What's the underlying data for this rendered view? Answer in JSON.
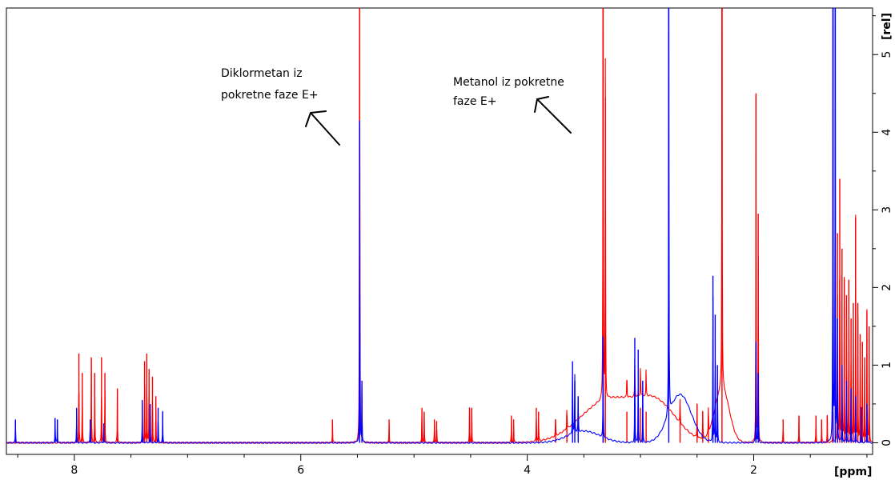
{
  "chart_data": {
    "type": "line",
    "title": "",
    "xlabel": "[ppm]",
    "ylabel": "[rel]",
    "x_reversed": true,
    "xlim": [
      8.6,
      0.95
    ],
    "ylim": [
      -0.15,
      5.6
    ],
    "xticks": [
      8,
      6,
      4,
      2
    ],
    "yticks": [
      0,
      1,
      2,
      3,
      4,
      5
    ],
    "grid": false,
    "legend": "none",
    "series": [
      {
        "color": "#ff0000",
        "baseline": 0.0,
        "broad": [
          {
            "x": 3.28,
            "h": 0.55,
            "w": 0.35
          },
          {
            "x": 2.85,
            "h": 0.45,
            "w": 0.25
          },
          {
            "x": 2.28,
            "h": 0.7,
            "w": 0.09
          }
        ],
        "peaks": [
          [
            7.96,
            1.15
          ],
          [
            7.93,
            0.9
          ],
          [
            7.85,
            1.1
          ],
          [
            7.82,
            0.9
          ],
          [
            7.76,
            1.1
          ],
          [
            7.73,
            0.9
          ],
          [
            7.62,
            0.7
          ],
          [
            7.38,
            1.05
          ],
          [
            7.36,
            1.15
          ],
          [
            7.34,
            0.95
          ],
          [
            7.31,
            0.85
          ],
          [
            7.28,
            0.6
          ],
          [
            5.72,
            0.3
          ],
          [
            5.48,
            9.0
          ],
          [
            5.22,
            0.3
          ],
          [
            4.93,
            0.45
          ],
          [
            4.91,
            0.4
          ],
          [
            4.82,
            0.3
          ],
          [
            4.8,
            0.28
          ],
          [
            4.51,
            0.45
          ],
          [
            4.49,
            0.45
          ],
          [
            4.14,
            0.35
          ],
          [
            4.12,
            0.3
          ],
          [
            3.92,
            0.45
          ],
          [
            3.9,
            0.4
          ],
          [
            3.75,
            0.3
          ],
          [
            3.65,
            0.35
          ],
          [
            3.33,
            9.0
          ],
          [
            3.31,
            4.45
          ],
          [
            3.12,
            0.4
          ],
          [
            3.05,
            0.5
          ],
          [
            3.0,
            0.45
          ],
          [
            2.95,
            0.4
          ],
          [
            2.65,
            0.35
          ],
          [
            2.5,
            0.5
          ],
          [
            2.45,
            0.4
          ],
          [
            2.4,
            0.35
          ],
          [
            2.28,
            9.0
          ],
          [
            1.98,
            4.5
          ],
          [
            1.96,
            2.95
          ],
          [
            1.74,
            0.3
          ],
          [
            1.6,
            0.35
          ],
          [
            1.45,
            0.35
          ],
          [
            1.4,
            0.3
          ],
          [
            1.35,
            0.35
          ],
          [
            1.3,
            0.4
          ],
          [
            1.26,
            2.7
          ],
          [
            1.24,
            3.4
          ],
          [
            1.22,
            2.5
          ],
          [
            1.2,
            2.1
          ],
          [
            1.18,
            1.9
          ],
          [
            1.16,
            2.1
          ],
          [
            1.14,
            1.6
          ],
          [
            1.12,
            1.8
          ],
          [
            1.1,
            2.9
          ],
          [
            1.08,
            1.8
          ],
          [
            1.06,
            1.4
          ],
          [
            1.04,
            1.3
          ],
          [
            1.02,
            1.1
          ],
          [
            1.0,
            1.7
          ],
          [
            0.98,
            1.5
          ]
        ]
      },
      {
        "color": "#0000ff",
        "baseline": 0.0,
        "broad": [
          {
            "x": 2.65,
            "h": 0.62,
            "w": 0.14
          },
          {
            "x": 3.5,
            "h": 0.15,
            "w": 0.2
          }
        ],
        "peaks": [
          [
            8.52,
            0.3
          ],
          [
            8.17,
            0.32
          ],
          [
            8.15,
            0.3
          ],
          [
            7.98,
            0.45
          ],
          [
            7.86,
            0.3
          ],
          [
            7.74,
            0.25
          ],
          [
            7.4,
            0.55
          ],
          [
            7.33,
            0.5
          ],
          [
            7.26,
            0.45
          ],
          [
            7.22,
            0.4
          ],
          [
            5.48,
            4.15
          ],
          [
            5.46,
            0.8
          ],
          [
            3.6,
            1.05
          ],
          [
            3.58,
            0.8
          ],
          [
            3.55,
            0.6
          ],
          [
            3.33,
            1.35
          ],
          [
            3.05,
            1.35
          ],
          [
            3.02,
            1.2
          ],
          [
            2.98,
            0.8
          ],
          [
            2.75,
            9.0
          ],
          [
            2.36,
            2.15
          ],
          [
            2.34,
            1.65
          ],
          [
            2.32,
            1.0
          ],
          [
            1.98,
            1.3
          ],
          [
            1.96,
            0.9
          ],
          [
            1.3,
            9.0
          ],
          [
            1.28,
            9.0
          ],
          [
            1.26,
            1.6
          ],
          [
            1.22,
            1.0
          ],
          [
            1.18,
            0.8
          ],
          [
            1.14,
            0.7
          ],
          [
            1.1,
            0.6
          ],
          [
            1.05,
            0.45
          ],
          [
            1.0,
            0.5
          ]
        ]
      }
    ],
    "annotations": [
      {
        "lines": [
          "Diklormetan iz",
          "pokretne faze E+"
        ]
      },
      {
        "lines": [
          "Metanol iz pokretne",
          "faze E+"
        ]
      }
    ]
  }
}
